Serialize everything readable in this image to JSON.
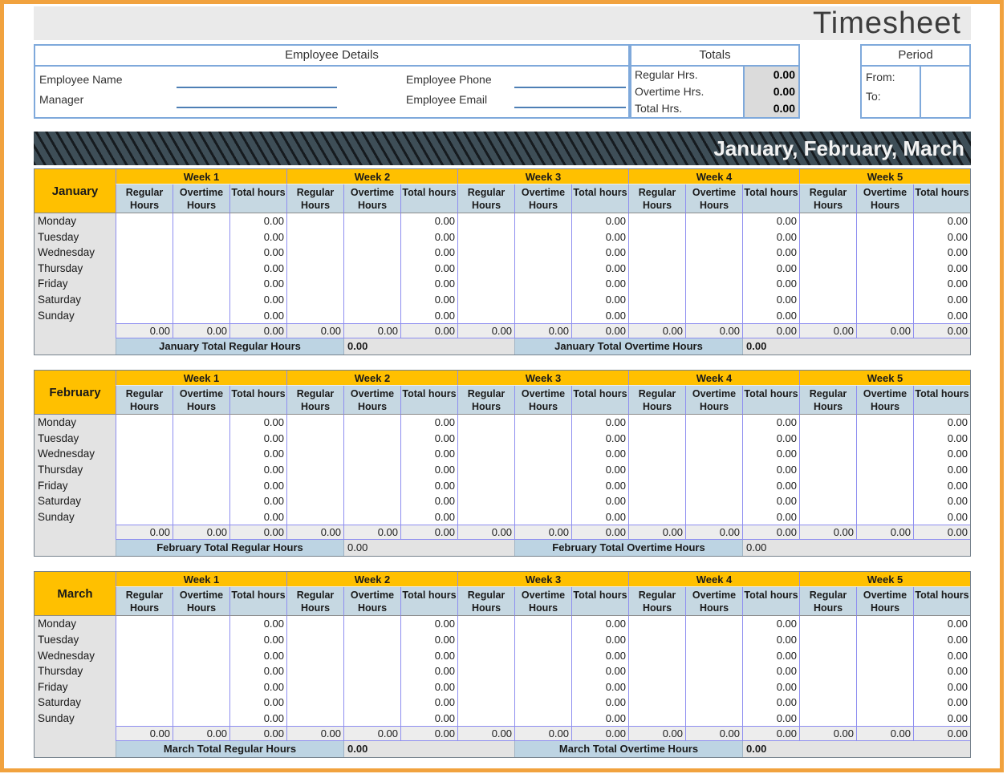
{
  "title": "Timesheet",
  "employee_details": {
    "header": "Employee Details",
    "fields": [
      {
        "label": "Employee Name",
        "value": ""
      },
      {
        "label": "Employee Phone",
        "value": ""
      },
      {
        "label": "Manager",
        "value": ""
      },
      {
        "label": "Employee Email",
        "value": ""
      }
    ]
  },
  "totals": {
    "header": "Totals",
    "rows": [
      {
        "label": "Regular Hrs.",
        "value": "0.00"
      },
      {
        "label": "Overtime Hrs.",
        "value": "0.00"
      },
      {
        "label": "Total Hrs.",
        "value": "0.00"
      }
    ]
  },
  "period": {
    "header": "Period",
    "rows": [
      {
        "label": "From:",
        "value": ""
      },
      {
        "label": "To:",
        "value": ""
      }
    ]
  },
  "banner": "January, February, March",
  "table": {
    "weeks": [
      "Week 1",
      "Week 2",
      "Week 3",
      "Week 4",
      "Week 5"
    ],
    "columns": [
      "Regular Hours",
      "Overtime Hours",
      "Total hours"
    ],
    "days": [
      "Monday",
      "Tuesday",
      "Wednesday",
      "Thursday",
      "Friday",
      "Saturday",
      "Sunday"
    ],
    "day_total_value": "0.00",
    "week_total_value": "0.00"
  },
  "months": [
    {
      "name": "January",
      "footer": {
        "regular_label": "January Total Regular Hours",
        "regular_value": "0.00",
        "overtime_label": "January Total Overtime Hours",
        "overtime_value": "0.00",
        "values_bold": true
      }
    },
    {
      "name": "February",
      "footer": {
        "regular_label": "February Total Regular Hours",
        "regular_value": "0.00",
        "overtime_label": "February Total Overtime Hours",
        "overtime_value": "0.00",
        "values_bold": false
      }
    },
    {
      "name": "March",
      "footer": {
        "regular_label": "March Total Regular Hours",
        "regular_value": "0.00",
        "overtime_label": "March Total Overtime Hours",
        "overtime_value": "0.00",
        "values_bold": true
      }
    }
  ],
  "colors": {
    "frame_orange": "#F1A23E",
    "title_bar_gray": "#EAEAEA",
    "box_border_blue": "#7FA9DB",
    "field_line_blue": "#4E7FB5",
    "totals_value_gray": "#DBDBDB",
    "banner_slate": "#3E4E57",
    "banner_stripe_black": "#161B1F",
    "header_gold": "#FFC000",
    "subheader_blue": "#C6D8E2",
    "cell_border_purple": "#8E8EF0",
    "day_column_gray": "#E3E3E3",
    "week_total_gray": "#EDEDED",
    "footer_label_blue": "#BDD4E3",
    "footer_value_gray": "#E3E3E3"
  }
}
